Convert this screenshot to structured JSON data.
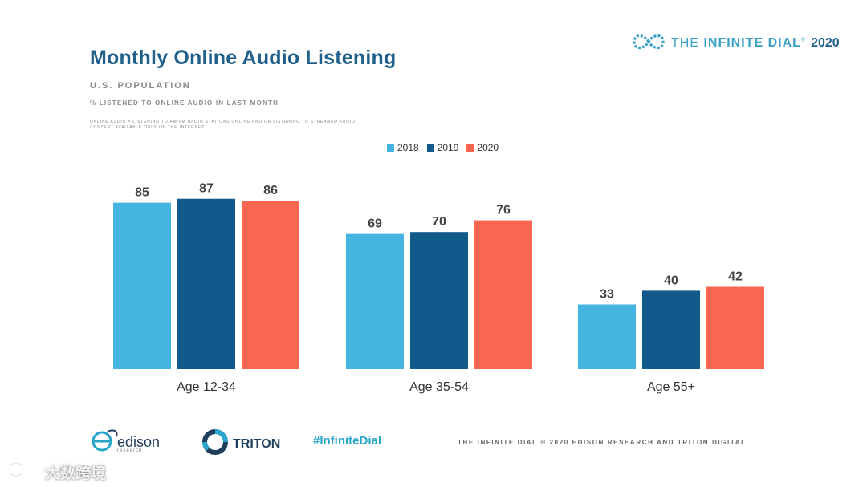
{
  "header": {
    "title": "Monthly Online Audio Listening",
    "subtitle": "U.S. POPULATION",
    "subnote": "% LISTENED TO ONLINE AUDIO IN LAST MONTH",
    "definition": "Online audio = listening to AM/FM radio stations online and/or listening to streamed audio content available only on the Internet"
  },
  "brand": {
    "prefix": "THE",
    "name": "INFINITE DIAL",
    "mark": "®",
    "year": "2020"
  },
  "colors": {
    "title": "#1f5f8b",
    "s2018": "#45b4e0",
    "s2019": "#125a8c",
    "s2020": "#fb6651"
  },
  "chart_data": {
    "type": "bar",
    "title": "Monthly Online Audio Listening",
    "xlabel": "",
    "ylabel": "",
    "ylim": [
      0,
      100
    ],
    "grid": false,
    "legend_position": "top-center",
    "categories": [
      "Age 12-34",
      "Age 35-54",
      "Age 55+"
    ],
    "series": [
      {
        "name": "2018",
        "color": "#45b4e0",
        "values": [
          85,
          69,
          33
        ]
      },
      {
        "name": "2019",
        "color": "#125a8c",
        "values": [
          87,
          70,
          40
        ]
      },
      {
        "name": "2020",
        "color": "#fb6651",
        "values": [
          86,
          76,
          42
        ]
      }
    ]
  },
  "footer": {
    "edison_name": "edison",
    "edison_sub": "research",
    "triton_name": "TRITON",
    "hashtag": "#InfiniteDial",
    "copyright": "THE INFINITE DIAL   © 2020 EDISON RESEARCH AND TRITON DIGITAL"
  },
  "watermark": {
    "text": "大数跨境"
  }
}
